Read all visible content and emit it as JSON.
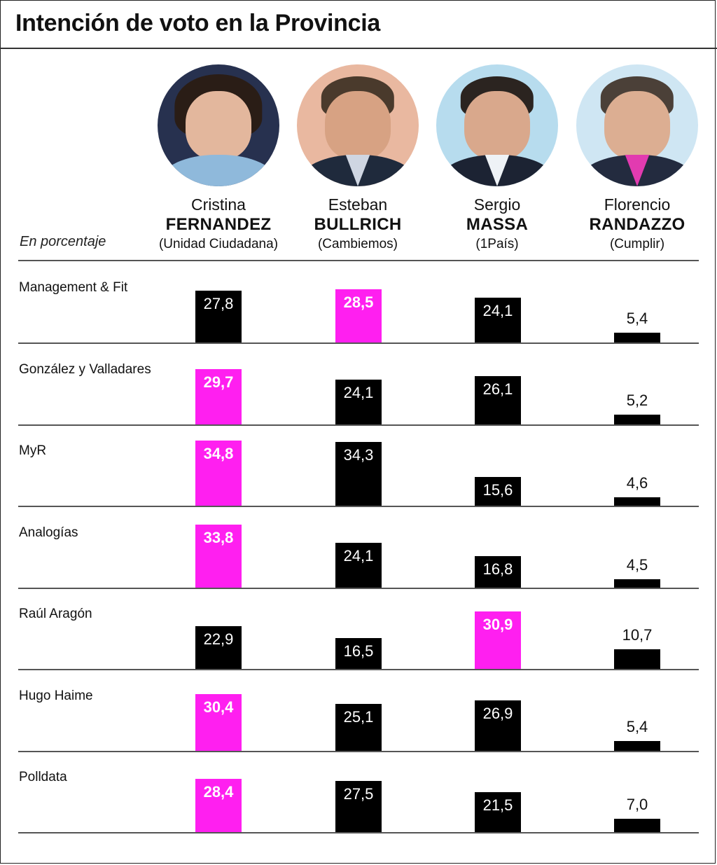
{
  "title": "Intención de voto en la Provincia",
  "subtitle": "En porcentaje",
  "colors": {
    "highlight": "#ff1ff0",
    "bar": "#000000"
  },
  "candidates": [
    {
      "first": "Cristina",
      "last": "FERNANDEZ",
      "party": "(Unidad Ciudadana)",
      "icon": "cristina-fernandez-photo"
    },
    {
      "first": "Esteban",
      "last": "BULLRICH",
      "party": "(Cambiemos)",
      "icon": "esteban-bullrich-photo"
    },
    {
      "first": "Sergio",
      "last": "MASSA",
      "party": "(1País)",
      "icon": "sergio-massa-photo"
    },
    {
      "first": "Florencio",
      "last": "RANDAZZO",
      "party": "(Cumplir)",
      "icon": "florencio-randazzo-photo"
    }
  ],
  "chart_data": {
    "type": "bar",
    "ylabel": "",
    "unit": "En porcentaje",
    "categories": [
      "Cristina FERNANDEZ",
      "Esteban BULLRICH",
      "Sergio MASSA",
      "Florencio RANDAZZO"
    ],
    "polls": [
      {
        "pollster": "Management & Fit",
        "values": [
          27.8,
          28.5,
          24.1,
          5.4
        ],
        "labels": [
          "27,8",
          "28,5",
          "24,1",
          "5,4"
        ],
        "leader": 1
      },
      {
        "pollster": "González y Valladares",
        "values": [
          29.7,
          24.1,
          26.1,
          5.2
        ],
        "labels": [
          "29,7",
          "24,1",
          "26,1",
          "5,2"
        ],
        "leader": 0
      },
      {
        "pollster": "MyR",
        "values": [
          34.8,
          34.3,
          15.6,
          4.6
        ],
        "labels": [
          "34,8",
          "34,3",
          "15,6",
          "4,6"
        ],
        "leader": 0
      },
      {
        "pollster": "Analogías",
        "values": [
          33.8,
          24.1,
          16.8,
          4.5
        ],
        "labels": [
          "33,8",
          "24,1",
          "16,8",
          "4,5"
        ],
        "leader": 0
      },
      {
        "pollster": "Raúl Aragón",
        "values": [
          22.9,
          16.5,
          30.9,
          10.7
        ],
        "labels": [
          "22,9",
          "16,5",
          "30,9",
          "10,7"
        ],
        "leader": 2
      },
      {
        "pollster": "Hugo Haime",
        "values": [
          30.4,
          25.1,
          26.9,
          5.4
        ],
        "labels": [
          "30,4",
          "25,1",
          "26,9",
          "5,4"
        ],
        "leader": 0
      },
      {
        "pollster": "Polldata",
        "values": [
          28.4,
          27.5,
          21.5,
          7.0
        ],
        "labels": [
          "28,4",
          "27,5",
          "21,5",
          "7,0"
        ],
        "leader": 0
      }
    ]
  }
}
